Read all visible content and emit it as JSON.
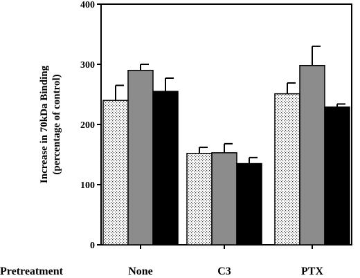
{
  "chart_data": {
    "type": "bar",
    "title": "",
    "ylabel_line1": "Increase in 70kDa Binding",
    "ylabel_line2": "(percentage of control)",
    "xlabel": "Pretreatment",
    "categories": [
      "None",
      "C3",
      "PTX"
    ],
    "ylim": [
      0,
      400
    ],
    "yticks": [
      0,
      100,
      200,
      300,
      400
    ],
    "grid": false,
    "legend": "none",
    "series": [
      {
        "fill": "stipple",
        "values": [
          240,
          152,
          251
        ],
        "errors": [
          25,
          10,
          18
        ]
      },
      {
        "fill": "#8c8c8c",
        "values": [
          290,
          153,
          298
        ],
        "errors": [
          10,
          15,
          32
        ]
      },
      {
        "fill": "#000000",
        "values": [
          255,
          135,
          229
        ],
        "errors": [
          22,
          10,
          5
        ]
      }
    ]
  }
}
